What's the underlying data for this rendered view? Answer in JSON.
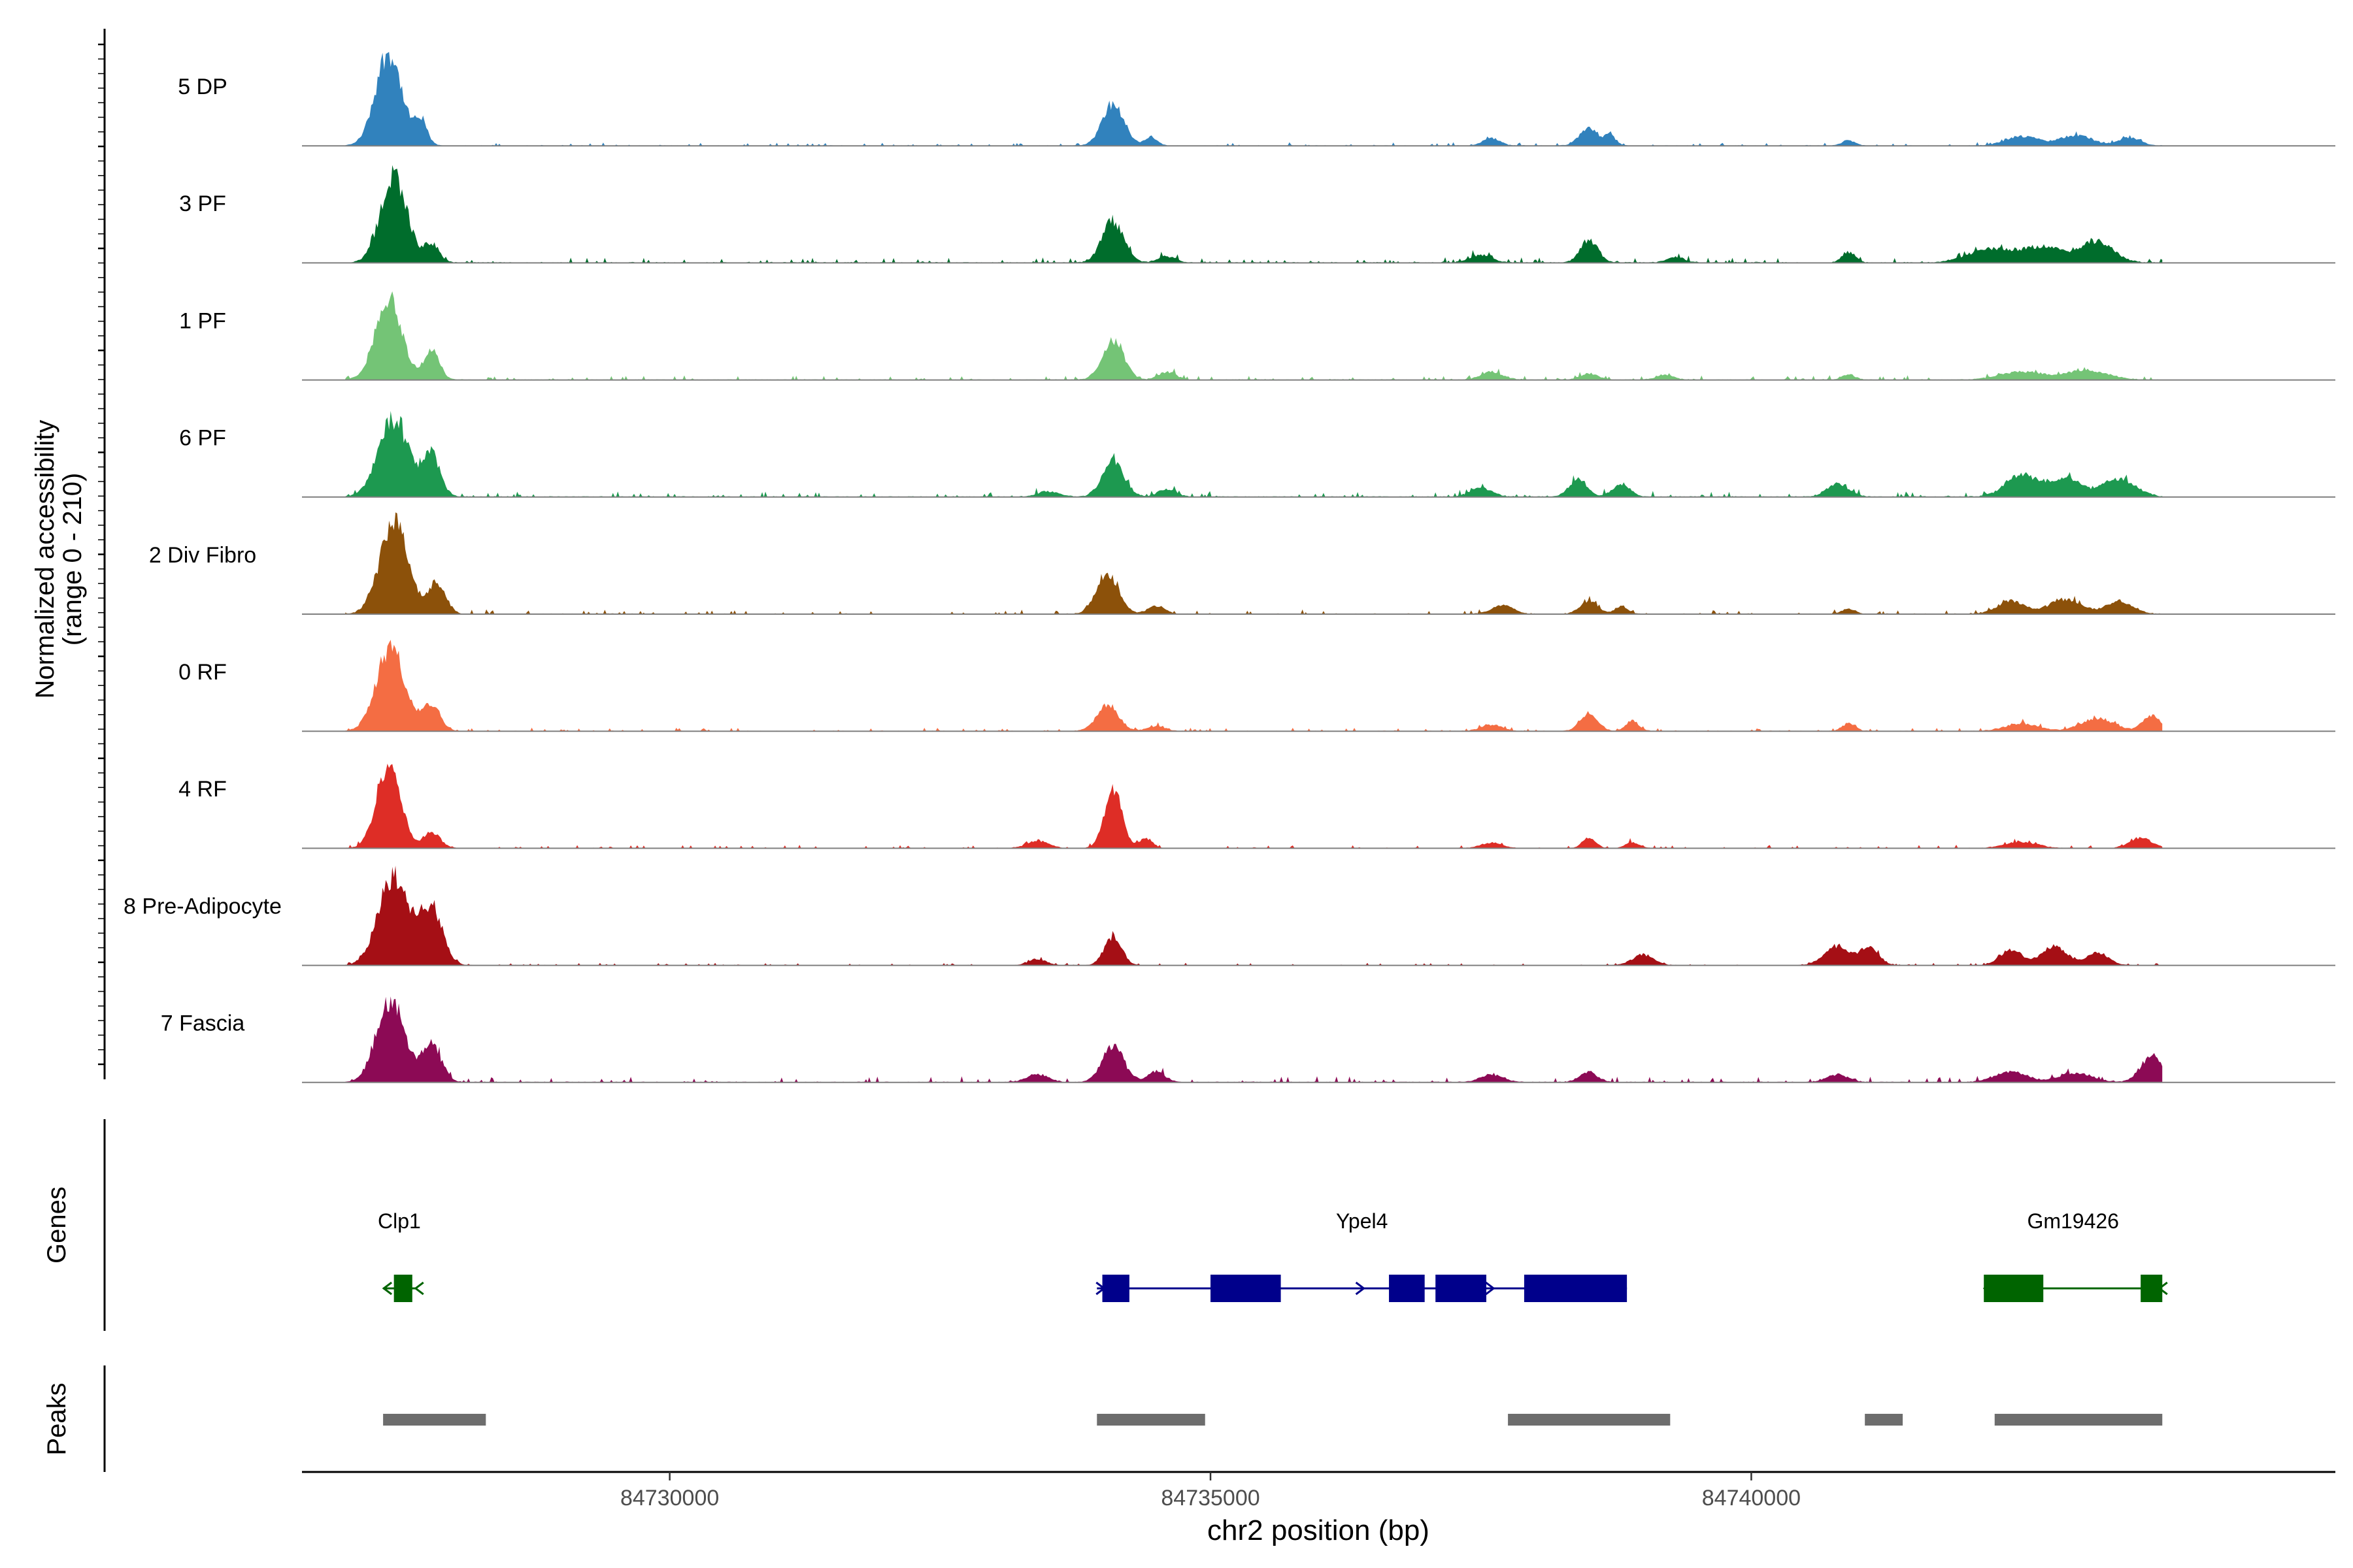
{
  "chart_data": {
    "type": "area",
    "title": "",
    "ylabel": "Normalized accessibility",
    "ylabel_range": "(range 0 - 210)",
    "y_range": [
      0,
      210
    ],
    "xlabel": "chr2 position (bp)",
    "x_range": [
      84726600,
      84745400
    ],
    "x_ticks": [
      {
        "value": 84730000,
        "label": "84730000"
      },
      {
        "value": 84735000,
        "label": "84735000"
      },
      {
        "value": 84740000,
        "label": "84740000"
      }
    ],
    "x_data_end": 84743800,
    "tracks": [
      {
        "name": "5 DP",
        "color": "#3182bd",
        "noise": 3,
        "peaks": [
          [
            84727400,
            180,
            120
          ],
          [
            84727700,
            45,
            60
          ],
          [
            84734100,
            80,
            100
          ],
          [
            84734450,
            16,
            60
          ],
          [
            84737600,
            14,
            80
          ],
          [
            84738500,
            32,
            90
          ],
          [
            84738700,
            18,
            50
          ],
          [
            84740900,
            10,
            60
          ],
          [
            84742500,
            18,
            150
          ],
          [
            84743000,
            20,
            150
          ],
          [
            84743500,
            15,
            100
          ]
        ]
      },
      {
        "name": "3 PF",
        "color": "#006d2c",
        "noise": 5,
        "peaks": [
          [
            84727450,
            170,
            120
          ],
          [
            84727800,
            35,
            70
          ],
          [
            84734100,
            80,
            100
          ],
          [
            84734600,
            12,
            80
          ],
          [
            84737500,
            15,
            100
          ],
          [
            84738500,
            45,
            80
          ],
          [
            84739300,
            10,
            80
          ],
          [
            84740900,
            20,
            60
          ],
          [
            84742200,
            25,
            200
          ],
          [
            84742700,
            30,
            200
          ],
          [
            84743200,
            40,
            150
          ]
        ]
      },
      {
        "name": "1 PF",
        "color": "#74c476",
        "noise": 4,
        "peaks": [
          [
            84727400,
            160,
            120
          ],
          [
            84727800,
            60,
            70
          ],
          [
            84734100,
            75,
            100
          ],
          [
            84734600,
            15,
            80
          ],
          [
            84737600,
            15,
            100
          ],
          [
            84738500,
            12,
            80
          ],
          [
            84739200,
            10,
            80
          ],
          [
            84740900,
            10,
            60
          ],
          [
            84742500,
            15,
            200
          ],
          [
            84743100,
            18,
            200
          ]
        ]
      },
      {
        "name": "6 PF",
        "color": "#1d9950",
        "noise": 5,
        "peaks": [
          [
            84727450,
            150,
            140
          ],
          [
            84727800,
            80,
            80
          ],
          [
            84733500,
            10,
            100
          ],
          [
            84734100,
            70,
            100
          ],
          [
            84734600,
            15,
            80
          ],
          [
            84737500,
            18,
            100
          ],
          [
            84738400,
            35,
            80
          ],
          [
            84738800,
            25,
            80
          ],
          [
            84740800,
            25,
            100
          ],
          [
            84742500,
            40,
            150
          ],
          [
            84742900,
            35,
            150
          ],
          [
            84743400,
            35,
            150
          ]
        ]
      },
      {
        "name": "2 Div Fibro",
        "color": "#8c510a",
        "noise": 4,
        "peaks": [
          [
            84727450,
            175,
            130
          ],
          [
            84727850,
            60,
            80
          ],
          [
            84734050,
            80,
            100
          ],
          [
            84734500,
            15,
            80
          ],
          [
            84737700,
            16,
            100
          ],
          [
            84738500,
            25,
            80
          ],
          [
            84738800,
            15,
            60
          ],
          [
            84740900,
            10,
            60
          ],
          [
            84742400,
            25,
            120
          ],
          [
            84742900,
            28,
            150
          ],
          [
            84743400,
            25,
            120
          ]
        ]
      },
      {
        "name": "0 RF",
        "color": "#f46d43",
        "noise": 3,
        "peaks": [
          [
            84727420,
            160,
            130
          ],
          [
            84727800,
            50,
            80
          ],
          [
            84734050,
            50,
            100
          ],
          [
            84734500,
            10,
            80
          ],
          [
            84737600,
            12,
            100
          ],
          [
            84738500,
            35,
            80
          ],
          [
            84738900,
            20,
            60
          ],
          [
            84740900,
            15,
            60
          ],
          [
            84742500,
            15,
            150
          ],
          [
            84743200,
            25,
            150
          ],
          [
            84743700,
            30,
            80
          ]
        ]
      },
      {
        "name": "4 RF",
        "color": "#de2d26",
        "noise": 3,
        "peaks": [
          [
            84727400,
            165,
            110
          ],
          [
            84727800,
            30,
            80
          ],
          [
            84733400,
            14,
            100
          ],
          [
            84734100,
            115,
            80
          ],
          [
            84734400,
            20,
            60
          ],
          [
            84737600,
            10,
            100
          ],
          [
            84738500,
            20,
            60
          ],
          [
            84738900,
            12,
            60
          ],
          [
            84742500,
            12,
            150
          ],
          [
            84743600,
            20,
            100
          ]
        ]
      },
      {
        "name": "8 Pre-Adipocyte",
        "color": "#a50f15",
        "noise": 2,
        "peaks": [
          [
            84727450,
            175,
            140
          ],
          [
            84727800,
            110,
            100
          ],
          [
            84733400,
            12,
            80
          ],
          [
            84734100,
            55,
            80
          ],
          [
            84739000,
            20,
            100
          ],
          [
            84740800,
            38,
            120
          ],
          [
            84741100,
            35,
            80
          ],
          [
            84742400,
            30,
            100
          ],
          [
            84742800,
            36,
            120
          ],
          [
            84743200,
            25,
            100
          ]
        ]
      },
      {
        "name": "7 Fascia",
        "color": "#8c0a55",
        "noise": 5,
        "peaks": [
          [
            84727420,
            160,
            130
          ],
          [
            84727800,
            70,
            90
          ],
          [
            84733400,
            15,
            100
          ],
          [
            84734100,
            70,
            100
          ],
          [
            84734500,
            20,
            80
          ],
          [
            84737600,
            15,
            100
          ],
          [
            84738500,
            20,
            80
          ],
          [
            84740800,
            15,
            100
          ],
          [
            84742400,
            20,
            150
          ],
          [
            84743000,
            18,
            150
          ],
          [
            84743700,
            50,
            100
          ]
        ]
      }
    ],
    "genes_label": "Genes",
    "genes": [
      {
        "name": "Clp1",
        "strand": "-",
        "color": "#006400",
        "start": 84727350,
        "end": 84727650,
        "exons": [
          [
            84727450,
            84727620
          ]
        ]
      },
      {
        "name": "Ypel4",
        "strand": "+",
        "color": "#00008b",
        "start": 84733950,
        "end": 84738850,
        "exons": [
          [
            84734000,
            84734250
          ],
          [
            84735000,
            84735650
          ],
          [
            84736650,
            84736980
          ],
          [
            84737080,
            84737550
          ],
          [
            84737900,
            84738850
          ]
        ]
      },
      {
        "name": "Gm19426",
        "strand": "-",
        "color": "#006400",
        "start": 84742150,
        "end": 84743800,
        "exons": [
          [
            84742150,
            84742700
          ],
          [
            84743600,
            84743800
          ]
        ]
      }
    ],
    "peaks_label": "Peaks",
    "peak_regions": [
      [
        84727350,
        84728300
      ],
      [
        84733950,
        84734950
      ],
      [
        84737750,
        84739250
      ],
      [
        84741050,
        84741400
      ],
      [
        84742250,
        84743800
      ]
    ],
    "peak_color": "#6d6d6d"
  }
}
